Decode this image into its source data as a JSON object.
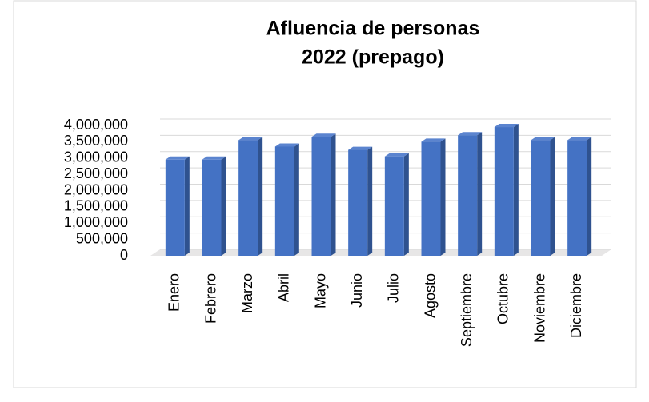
{
  "chart_data": {
    "type": "bar",
    "title": [
      "Afluencia de personas",
      "2022 (prepago)"
    ],
    "categories": [
      "Enero",
      "Febrero",
      "Marzo",
      "Abril",
      "Mayo",
      "Junio",
      "Julio",
      "Agosto",
      "Septiembre",
      "Octubre",
      "Noviembre",
      "Diciembre"
    ],
    "values": [
      2950000,
      2950000,
      3550000,
      3350000,
      3650000,
      3250000,
      3050000,
      3500000,
      3700000,
      3950000,
      3550000,
      3550000
    ],
    "color": "#4472c4",
    "ylim": [
      0,
      4000000
    ],
    "yticks": [
      0,
      {
        "value": 500000,
        "label": "500,000"
      },
      {
        "value": 1000000,
        "label": "1,000,000"
      },
      {
        "value": 1500000,
        "label": "1,500,000"
      },
      {
        "value": 2000000,
        "label": "2,000,000"
      },
      {
        "value": 2500000,
        "label": "2,500,000"
      },
      {
        "value": 3000000,
        "label": "3,000,000"
      },
      {
        "value": 3500000,
        "label": "3,500,000"
      },
      {
        "value": 4000000,
        "label": "4,000,000"
      }
    ],
    "grid": true
  }
}
